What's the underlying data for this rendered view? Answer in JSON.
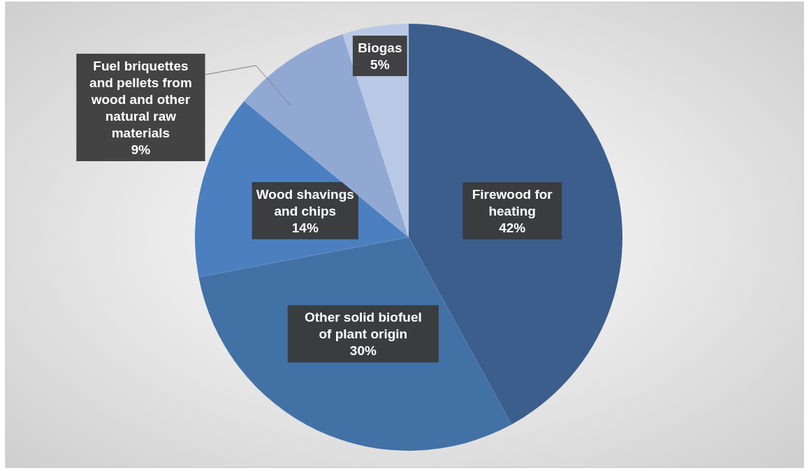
{
  "chart_data": {
    "type": "pie",
    "categories": [
      "Firewood for\nheating",
      "Other solid biofuel\nof plant origin",
      "Wood shavings\nand chips",
      "Fuel briquettes\nand pellets from\nwood and other\nnatural raw\nmaterials",
      "Biogas"
    ],
    "values": [
      42,
      30,
      14,
      9,
      5
    ],
    "colors": [
      "#3b5e8c",
      "#4271a6",
      "#4b7fbf",
      "#91a8d3",
      "#b9c9e5"
    ],
    "value_labels": [
      "42%",
      "30%",
      "14%",
      "9%",
      "5%"
    ]
  }
}
